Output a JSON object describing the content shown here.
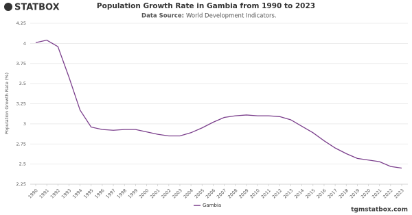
{
  "logo": "STATBOX",
  "footer": "tgmstatbox.com",
  "chart_data": {
    "type": "line",
    "title": "Population Growth Rate in Gambia from 1990 to 2023",
    "source_label": "Data Source:",
    "source": "World Development Indicators.",
    "y_label": "Population Growth Rate (%)",
    "categories": [
      "1990",
      "1991",
      "1992",
      "1993",
      "1994",
      "1995",
      "1996",
      "1997",
      "1998",
      "1999",
      "2000",
      "2001",
      "2002",
      "2003",
      "2004",
      "2005",
      "2006",
      "2007",
      "2008",
      "2009",
      "2010",
      "2011",
      "2012",
      "2013",
      "2014",
      "2015",
      "2016",
      "2017",
      "2018",
      "2019",
      "2020",
      "2021",
      "2022",
      "2023"
    ],
    "series": [
      {
        "name": "Gambia",
        "color": "#7b3f8c",
        "values": [
          4.01,
          4.04,
          3.96,
          3.58,
          3.17,
          2.96,
          2.93,
          2.92,
          2.93,
          2.93,
          2.9,
          2.87,
          2.85,
          2.85,
          2.89,
          2.95,
          3.02,
          3.08,
          3.1,
          3.11,
          3.1,
          3.1,
          3.09,
          3.05,
          2.97,
          2.89,
          2.79,
          2.7,
          2.63,
          2.57,
          2.55,
          2.53,
          2.47,
          2.45
        ]
      }
    ],
    "ylim": [
      2.25,
      4.25
    ],
    "yticks": [
      2.25,
      2.5,
      2.75,
      3,
      3.25,
      3.5,
      3.75,
      4,
      4.25
    ],
    "grid": true
  }
}
